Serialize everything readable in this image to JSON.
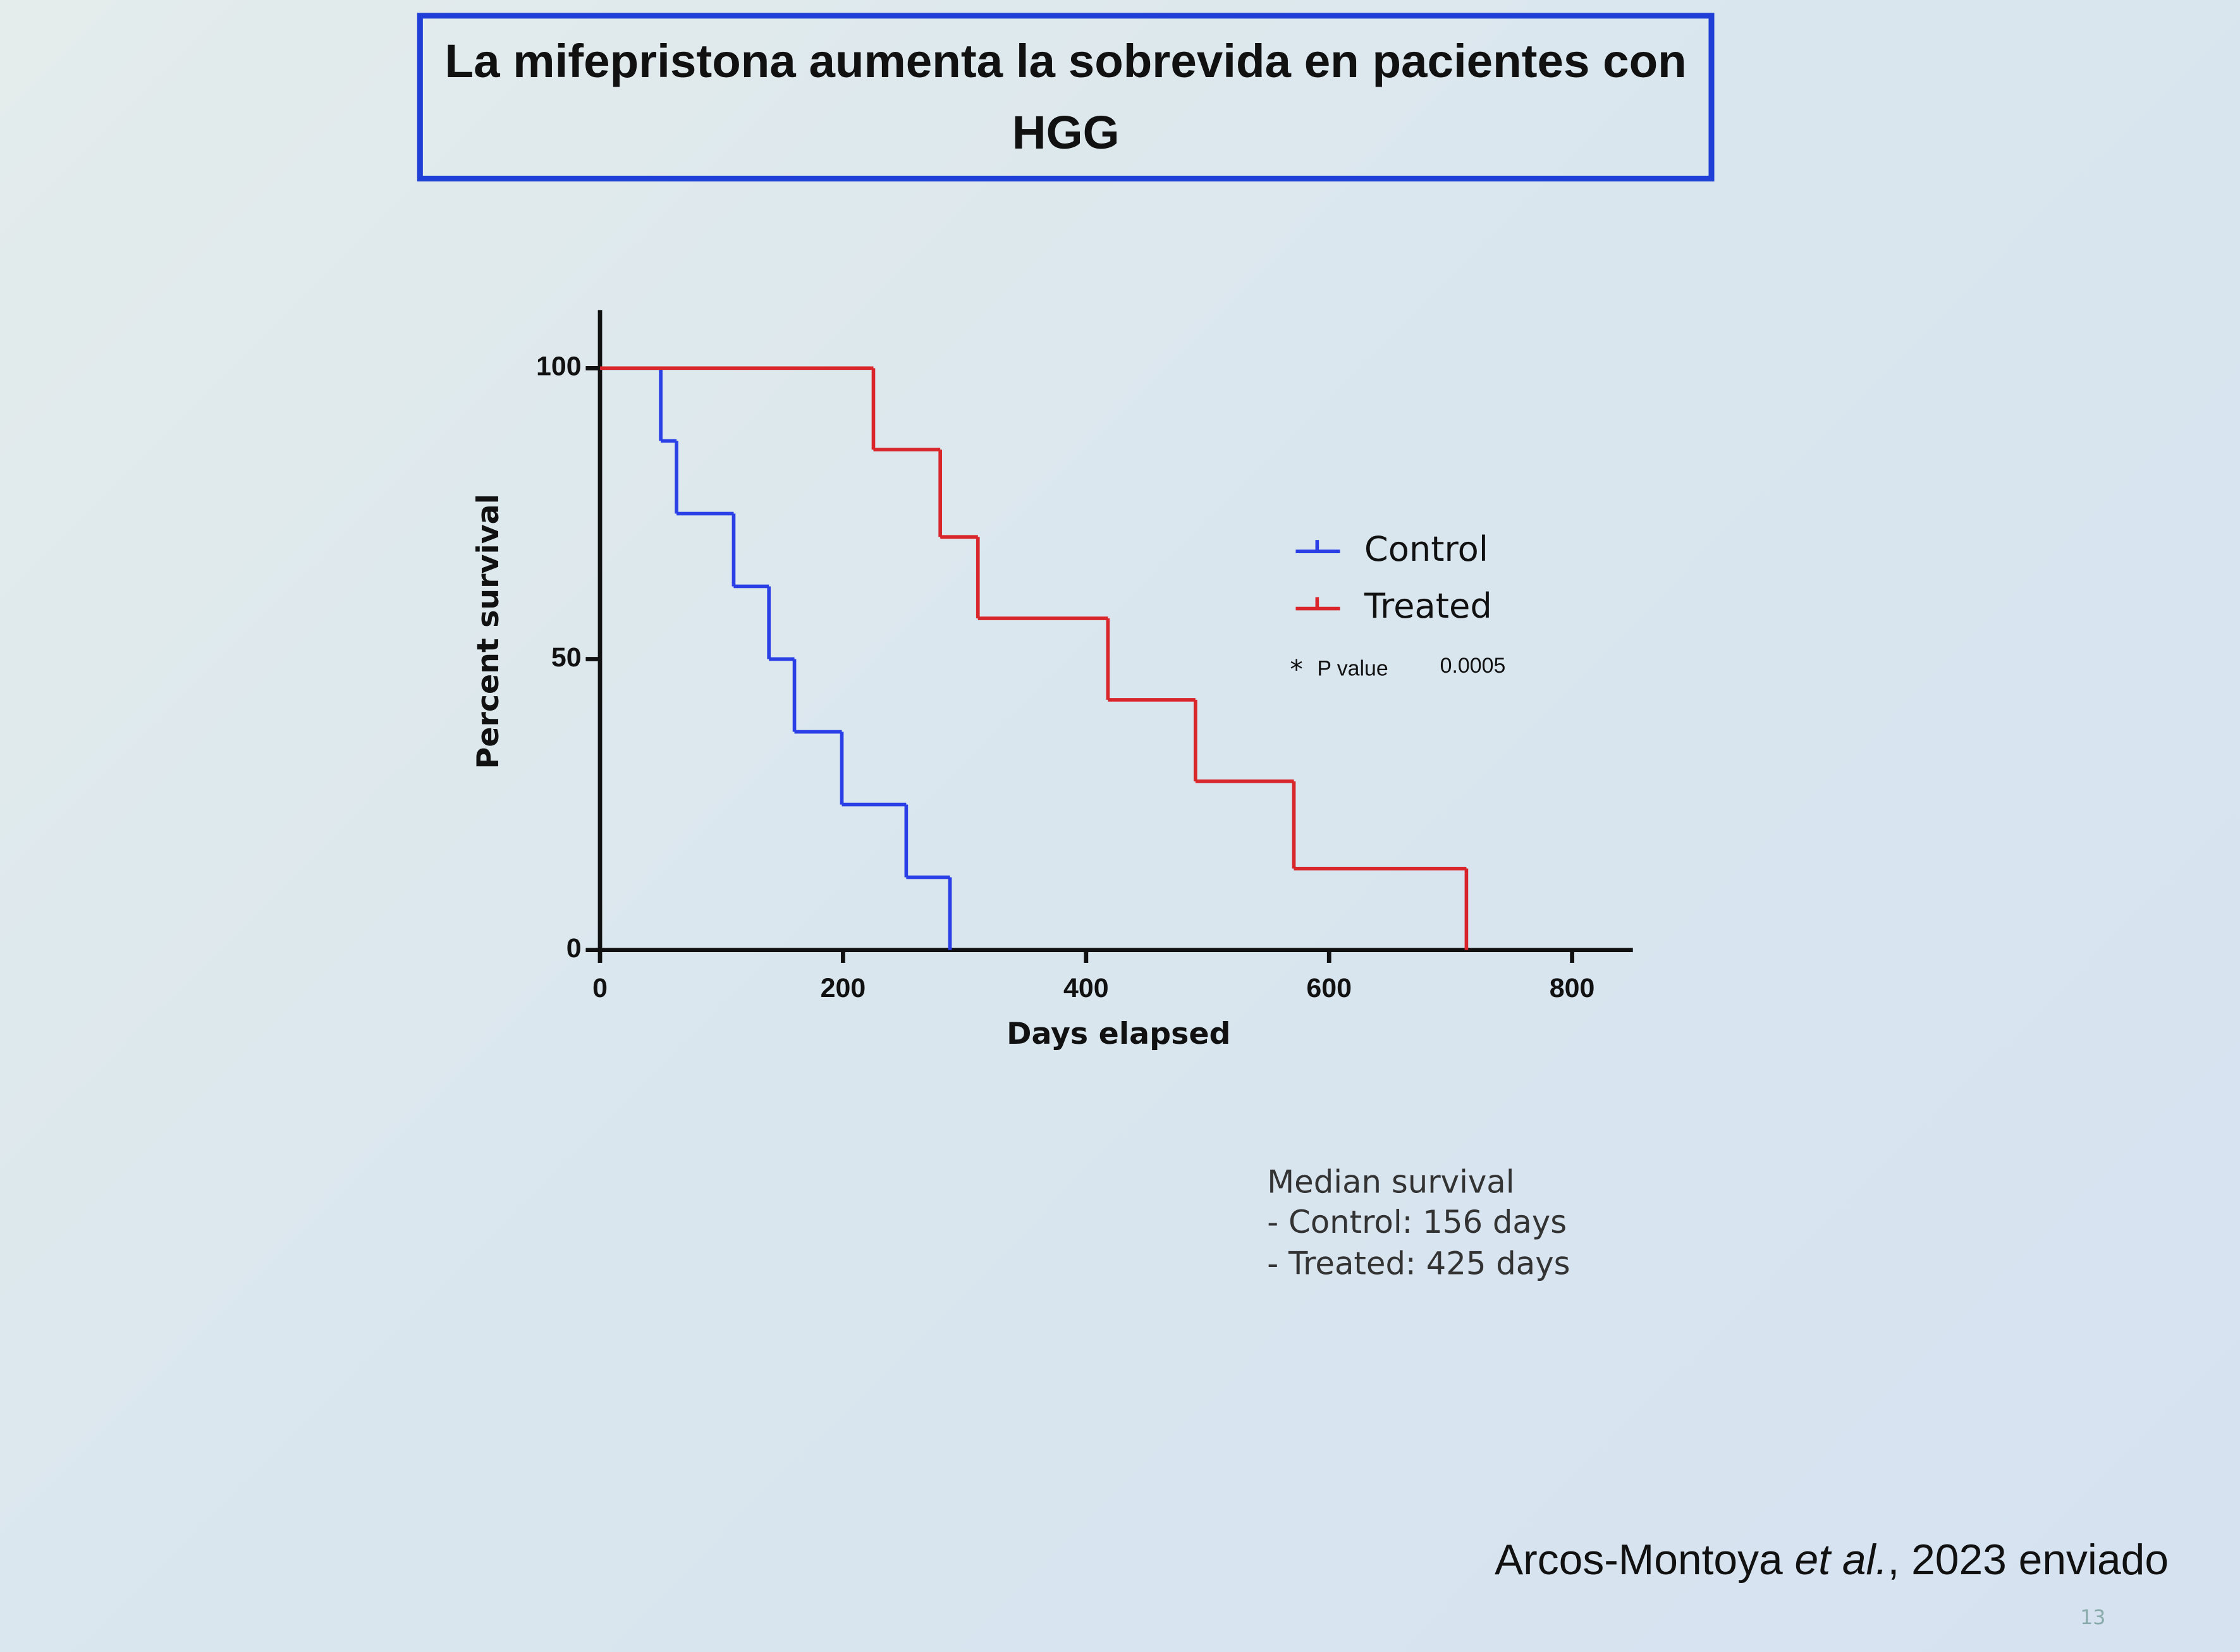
{
  "chart_data": {
    "type": "step",
    "title": "La mifepristona aumenta la sobrevida en pacientes con HGG",
    "x_label": "Days elapsed",
    "y_label": "Percent survival",
    "xlim": [
      0,
      850
    ],
    "ylim": [
      0,
      110
    ],
    "xticks": [
      0,
      200,
      400,
      600,
      800
    ],
    "yticks": [
      0,
      50,
      100
    ],
    "series": [
      {
        "name": "Control",
        "color": "#2a3fe6",
        "x": [
          0,
          50,
          63,
          110,
          139,
          160,
          199,
          252,
          288
        ],
        "values": [
          100,
          87.5,
          75,
          62.5,
          50,
          37.5,
          25,
          12.5,
          0
        ]
      },
      {
        "name": "Treated",
        "color": "#d8262b",
        "x": [
          0,
          225,
          280,
          311,
          418,
          490,
          571,
          713
        ],
        "values": [
          100,
          86,
          71,
          57,
          43,
          29,
          14,
          0
        ]
      }
    ],
    "annotation": {
      "label": "P value",
      "value": "0.0005"
    },
    "median_survival": {
      "title": "Median survival",
      "lines": [
        "- Control: 156 days",
        "- Treated: 425 days"
      ]
    },
    "citation": {
      "author": "Arcos-Montoya ",
      "etal": "et al.",
      "rest": ", 2023 enviado"
    },
    "page_number": "13"
  }
}
